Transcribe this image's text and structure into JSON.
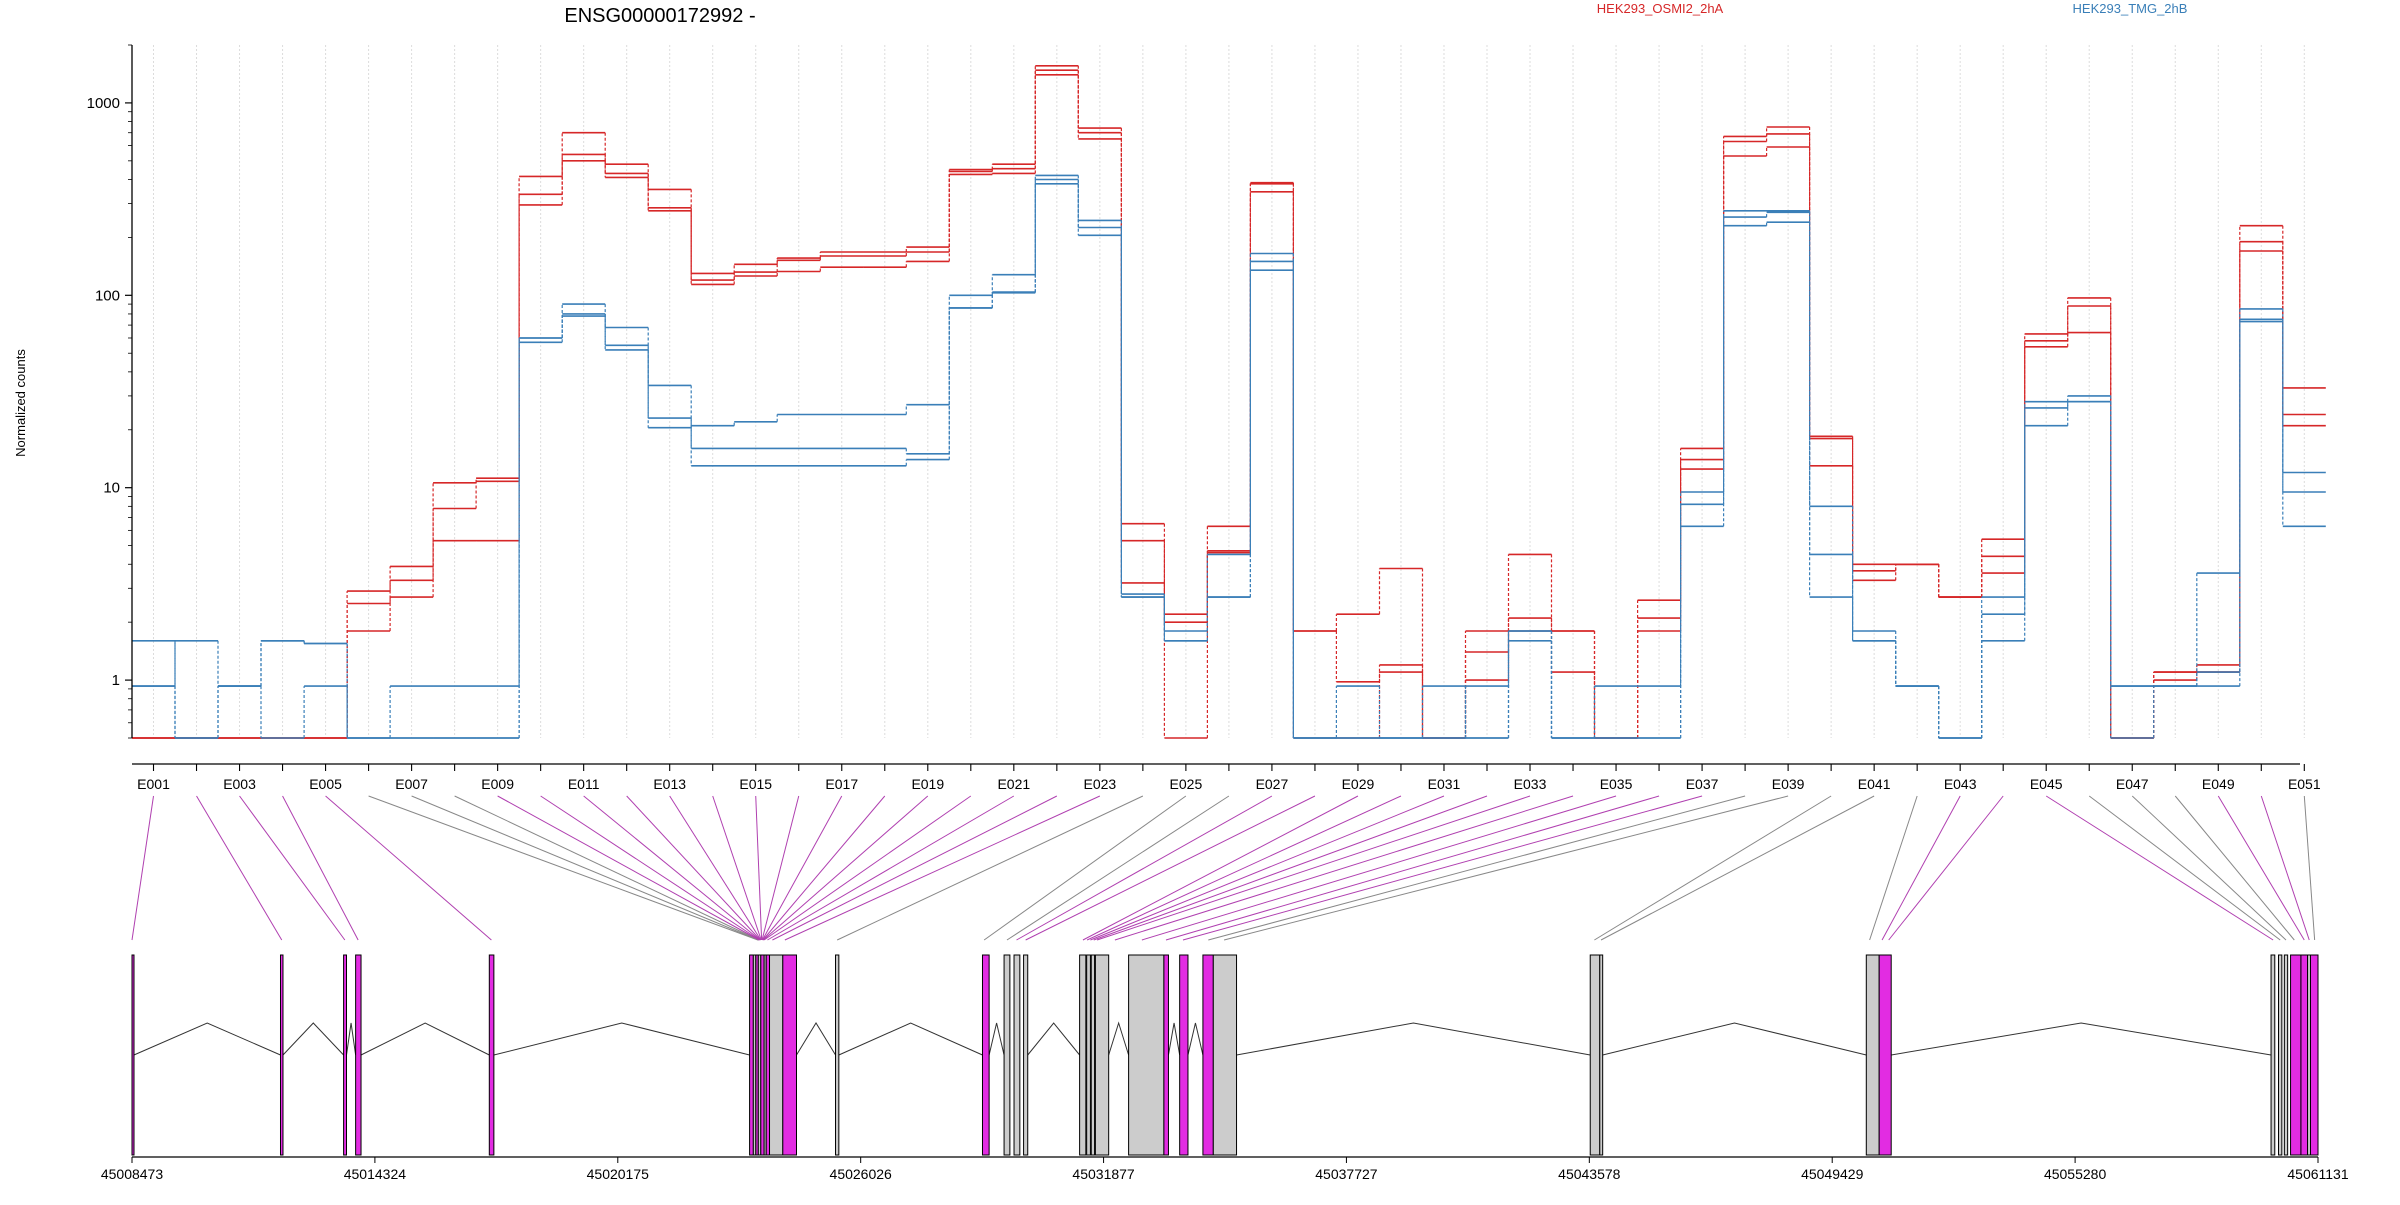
{
  "title": "ENSG00000172992 -",
  "legend": [
    {
      "label": "HEK293_OSMI2_2hA",
      "color": "#d62728"
    },
    {
      "label": "HEK293_TMG_2hB",
      "color": "#3a7fb8"
    }
  ],
  "colors": {
    "osmi": "#d62728",
    "tmg": "#3a7fb8",
    "highlight_exon": "#e22ce2",
    "plain_exon": "#cccccc",
    "highlight_connector": "#b040b0",
    "plain_connector": "#888888"
  },
  "chart_data": {
    "type": "line",
    "ylabel": "Normalized counts",
    "yscale": "log",
    "ylim": [
      0.5,
      2000
    ],
    "y_ticks": [
      {
        "v": 1,
        "label": "1"
      },
      {
        "v": 10,
        "label": "10"
      },
      {
        "v": 100,
        "label": "100"
      },
      {
        "v": 1000,
        "label": "1000"
      }
    ],
    "exons": [
      "E001",
      "E002",
      "E003",
      "E004",
      "E005",
      "E006",
      "E007",
      "E008",
      "E009",
      "E010",
      "E011",
      "E012",
      "E013",
      "E014",
      "E015",
      "E016",
      "E017",
      "E018",
      "E019",
      "E020",
      "E021",
      "E022",
      "E023",
      "E024",
      "E025",
      "E026",
      "E027",
      "E028",
      "E029",
      "E030",
      "E031",
      "E032",
      "E033",
      "E034",
      "E035",
      "E036",
      "E037",
      "E038",
      "E039",
      "E040",
      "E041",
      "E042",
      "E043",
      "E044",
      "E045",
      "E046",
      "E047",
      "E048",
      "E049",
      "E050",
      "E051"
    ],
    "highlighted_exons": [
      "E001",
      "E002",
      "E003",
      "E004",
      "E005",
      "E009",
      "E010",
      "E011",
      "E012",
      "E013",
      "E014",
      "E015",
      "E016",
      "E017",
      "E018",
      "E019",
      "E020",
      "E021",
      "E022",
      "E023",
      "E027",
      "E028",
      "E029",
      "E030",
      "E031",
      "E032",
      "E033",
      "E034",
      "E035",
      "E036",
      "E037",
      "E043",
      "E044",
      "E045",
      "E049",
      "E050"
    ],
    "series": [
      {
        "group": "OSMI2_2hA",
        "values": [
          0.5,
          0.5,
          0.5,
          0.5,
          0.5,
          2.9,
          3.3,
          7.8,
          10.8,
          415,
          700,
          480,
          355,
          130,
          145,
          156,
          168,
          168,
          178,
          450,
          480,
          1560,
          740,
          6.5,
          2.2,
          6.3,
          385,
          1.8,
          2.2,
          3.8,
          0.5,
          1.8,
          4.5,
          1.8,
          0.5,
          2.6,
          16,
          670,
          750,
          18.5,
          4,
          4,
          2.7,
          5.4,
          63,
          97,
          0.5,
          1.1,
          1.2,
          230,
          33
        ]
      },
      {
        "group": "OSMI2_2hA",
        "values": [
          0.5,
          0.5,
          0.5,
          0.5,
          0.5,
          2.5,
          3.9,
          10.6,
          11.2,
          335,
          540,
          430,
          285,
          120,
          132,
          152,
          160,
          160,
          168,
          440,
          455,
          1480,
          700,
          5.3,
          2,
          4.7,
          380,
          1.8,
          0.98,
          1.2,
          0.5,
          1.4,
          2.1,
          1.8,
          0.5,
          2.1,
          14,
          630,
          690,
          18,
          3.7,
          4,
          2.7,
          4.4,
          58,
          88,
          0.5,
          1.1,
          1.1,
          190,
          24
        ]
      },
      {
        "group": "OSMI2_2hA",
        "values": [
          0.5,
          0.5,
          0.5,
          0.5,
          0.5,
          1.8,
          2.7,
          5.3,
          5.3,
          295,
          500,
          410,
          275,
          114,
          126,
          133,
          140,
          140,
          150,
          425,
          430,
          1400,
          650,
          3.2,
          0.5,
          4.6,
          345,
          0.5,
          0.5,
          1.1,
          0.5,
          1,
          1.8,
          1.1,
          0.5,
          1.8,
          12.5,
          530,
          590,
          13,
          3.3,
          4,
          2.7,
          3.6,
          54,
          64,
          0.5,
          1,
          1.1,
          170,
          21
        ]
      },
      {
        "group": "TMG_2hB",
        "values": [
          1.6,
          0.5,
          0.93,
          1.6,
          1.55,
          0.5,
          0.5,
          0.5,
          0.5,
          60,
          80,
          55,
          20.5,
          21,
          22,
          24,
          24,
          24,
          27,
          100,
          128,
          420,
          245,
          2.7,
          1.8,
          2.7,
          165,
          0.5,
          0.5,
          0.5,
          0.93,
          0.5,
          1.8,
          0.5,
          0.93,
          0.93,
          9.5,
          275,
          275,
          8,
          1.8,
          0.93,
          0.5,
          2.7,
          28,
          30,
          0.5,
          0.93,
          1.1,
          85,
          12
        ]
      },
      {
        "group": "TMG_2hB",
        "values": [
          0.93,
          1.6,
          0.93,
          1.6,
          1.55,
          0.5,
          0.93,
          0.93,
          0.93,
          60,
          90,
          68,
          23,
          16,
          16,
          16,
          16,
          16,
          15,
          86,
          104,
          400,
          225,
          2.8,
          1.6,
          4.5,
          150,
          0.5,
          0.93,
          0.5,
          0.5,
          0.93,
          1.8,
          0.5,
          0.5,
          0.5,
          8.2,
          255,
          270,
          4.5,
          1.6,
          0.93,
          0.5,
          2.2,
          26,
          28,
          0.93,
          0.93,
          0.93,
          75,
          9.5
        ]
      },
      {
        "group": "TMG_2hB",
        "values": [
          0.93,
          0.5,
          0.93,
          0.5,
          0.93,
          0.5,
          0.5,
          0.5,
          0.5,
          57,
          78,
          52,
          34,
          13,
          13,
          13,
          13,
          13,
          14,
          86,
          103,
          380,
          205,
          2.7,
          1.6,
          2.7,
          135,
          0.5,
          0.5,
          0.5,
          0.5,
          0.5,
          1.6,
          0.5,
          0.5,
          0.5,
          6.3,
          230,
          240,
          2.7,
          1.6,
          0.93,
          0.5,
          1.6,
          21,
          28,
          0.93,
          0.93,
          3.6,
          73,
          6.3
        ]
      }
    ],
    "gene_axis": {
      "start": 45008473,
      "end": 45061131,
      "tick_labels": [
        "45008473",
        "45014324",
        "45020175",
        "45026026",
        "45031877",
        "45037727",
        "45043578",
        "45049429",
        "45055280",
        "45061131"
      ]
    },
    "exon_blocks": [
      {
        "start": 45008473,
        "end": 45008520,
        "highlight": true
      },
      {
        "start": 45012050,
        "end": 45012110,
        "highlight": true
      },
      {
        "start": 45013570,
        "end": 45013640,
        "highlight": true
      },
      {
        "start": 45013860,
        "end": 45013990,
        "highlight": true
      },
      {
        "start": 45017080,
        "end": 45017190,
        "highlight": true
      },
      {
        "start": 45023350,
        "end": 45023440,
        "highlight": true
      },
      {
        "start": 45023440,
        "end": 45023500,
        "highlight": false
      },
      {
        "start": 45023500,
        "end": 45023560,
        "highlight": true
      },
      {
        "start": 45023560,
        "end": 45023620,
        "highlight": false
      },
      {
        "start": 45023620,
        "end": 45023700,
        "highlight": true
      },
      {
        "start": 45023700,
        "end": 45023750,
        "highlight": false
      },
      {
        "start": 45023750,
        "end": 45023830,
        "highlight": true
      },
      {
        "start": 45023830,
        "end": 45024150,
        "highlight": false
      },
      {
        "start": 45024150,
        "end": 45024480,
        "highlight": true
      },
      {
        "start": 45025420,
        "end": 45025500,
        "highlight": false
      },
      {
        "start": 45028960,
        "end": 45029120,
        "highlight": true
      },
      {
        "start": 45029480,
        "end": 45029620,
        "highlight": false
      },
      {
        "start": 45029720,
        "end": 45029860,
        "highlight": false
      },
      {
        "start": 45029950,
        "end": 45030050,
        "highlight": false
      },
      {
        "start": 45031300,
        "end": 45031450,
        "highlight": false
      },
      {
        "start": 45031470,
        "end": 45031560,
        "highlight": false
      },
      {
        "start": 45031580,
        "end": 45031660,
        "highlight": false
      },
      {
        "start": 45031680,
        "end": 45032000,
        "highlight": false
      },
      {
        "start": 45032480,
        "end": 45033330,
        "highlight": false
      },
      {
        "start": 45033330,
        "end": 45033440,
        "highlight": true
      },
      {
        "start": 45033710,
        "end": 45033910,
        "highlight": true
      },
      {
        "start": 45034270,
        "end": 45034520,
        "highlight": true
      },
      {
        "start": 45034520,
        "end": 45035080,
        "highlight": false
      },
      {
        "start": 45043600,
        "end": 45043830,
        "highlight": false
      },
      {
        "start": 45043830,
        "end": 45043900,
        "highlight": false
      },
      {
        "start": 45050250,
        "end": 45050560,
        "highlight": false
      },
      {
        "start": 45050560,
        "end": 45050850,
        "highlight": true
      },
      {
        "start": 45060000,
        "end": 45060090,
        "highlight": false
      },
      {
        "start": 45060180,
        "end": 45060260,
        "highlight": false
      },
      {
        "start": 45060320,
        "end": 45060400,
        "highlight": false
      },
      {
        "start": 45060470,
        "end": 45060720,
        "highlight": true
      },
      {
        "start": 45060720,
        "end": 45060880,
        "highlight": true
      },
      {
        "start": 45060880,
        "end": 45060950,
        "highlight": false
      },
      {
        "start": 45060950,
        "end": 45061131,
        "highlight": true
      }
    ],
    "connector_targets": [
      45008473,
      45012080,
      45013600,
      45013920,
      45017130,
      45023550,
      45023560,
      45023570,
      45023580,
      45023590,
      45023600,
      45023610,
      45023620,
      45023630,
      45023640,
      45023650,
      45023660,
      45023670,
      45023680,
      45023700,
      45023780,
      45023900,
      45024200,
      45025460,
      45029000,
      45029550,
      45029780,
      45030000,
      45031380,
      45031480,
      45031560,
      45031640,
      45031720,
      45032150,
      45032800,
      45033380,
      45033790,
      45034400,
      45034780,
      45043700,
      45043860,
      45050330,
      45050630,
      45050790,
      45060050,
      45060220,
      45060360,
      45060560,
      45060800,
      45060920,
      45061050
    ]
  }
}
